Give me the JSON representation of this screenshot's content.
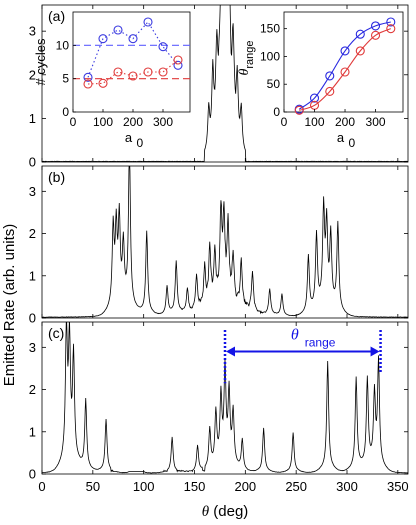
{
  "chart_data": {
    "type": "line",
    "ylabel": "Emitted Rate (arb. units)",
    "xlabel_symbol": "θ",
    "xlabel_unit": "(deg)",
    "xlim": [
      0,
      360
    ],
    "xticks": [
      0,
      50,
      100,
      150,
      200,
      250,
      300,
      350
    ],
    "ylim": [
      0,
      3.6
    ],
    "yticks": [
      0,
      1,
      2,
      3
    ],
    "panels": [
      {
        "label": "(a)",
        "peaks": [
          {
            "theta": 180,
            "height": 3.0
          },
          {
            "theta": 178,
            "height": 2.6
          },
          {
            "theta": 182,
            "height": 2.6
          },
          {
            "theta": 176,
            "height": 2.3
          },
          {
            "theta": 184,
            "height": 2.2
          },
          {
            "theta": 172,
            "height": 1.7
          },
          {
            "theta": 188,
            "height": 1.7
          },
          {
            "theta": 168,
            "height": 1.5
          },
          {
            "theta": 192,
            "height": 1.4
          },
          {
            "theta": 164,
            "height": 0.9
          },
          {
            "theta": 196,
            "height": 0.9
          }
        ]
      },
      {
        "label": "(b)",
        "peaks": [
          {
            "theta": 70,
            "height": 1.8
          },
          {
            "theta": 73,
            "height": 1.7
          },
          {
            "theta": 76,
            "height": 1.9
          },
          {
            "theta": 80,
            "height": 1.3
          },
          {
            "theta": 86,
            "height": 3.7
          },
          {
            "theta": 103,
            "height": 1.9
          },
          {
            "theta": 123,
            "height": 0.65
          },
          {
            "theta": 132,
            "height": 1.2
          },
          {
            "theta": 143,
            "height": 0.55
          },
          {
            "theta": 152,
            "height": 0.8
          },
          {
            "theta": 160,
            "height": 0.9
          },
          {
            "theta": 165,
            "height": 1.3
          },
          {
            "theta": 170,
            "height": 1.1
          },
          {
            "theta": 176,
            "height": 2.0
          },
          {
            "theta": 179,
            "height": 1.8
          },
          {
            "theta": 183,
            "height": 1.7
          },
          {
            "theta": 188,
            "height": 1.1
          },
          {
            "theta": 196,
            "height": 1.1
          },
          {
            "theta": 207,
            "height": 0.9
          },
          {
            "theta": 224,
            "height": 0.6
          },
          {
            "theta": 236,
            "height": 0.5
          },
          {
            "theta": 262,
            "height": 1.3
          },
          {
            "theta": 270,
            "height": 1.7
          },
          {
            "theta": 277,
            "height": 2.2
          },
          {
            "theta": 280,
            "height": 1.8
          },
          {
            "theta": 284,
            "height": 1.6
          },
          {
            "theta": 291,
            "height": 2.0
          }
        ]
      },
      {
        "label": "(c)",
        "peaks": [
          {
            "theta": 24,
            "height": 3.0
          },
          {
            "theta": 27,
            "height": 2.7
          },
          {
            "theta": 31,
            "height": 2.4
          },
          {
            "theta": 43,
            "height": 1.6
          },
          {
            "theta": 63,
            "height": 1.2
          },
          {
            "theta": 128,
            "height": 0.8
          },
          {
            "theta": 153,
            "height": 0.6
          },
          {
            "theta": 165,
            "height": 0.9
          },
          {
            "theta": 171,
            "height": 1.2
          },
          {
            "theta": 176,
            "height": 1.5
          },
          {
            "theta": 180,
            "height": 2.1
          },
          {
            "theta": 184,
            "height": 1.6
          },
          {
            "theta": 188,
            "height": 1.2
          },
          {
            "theta": 197,
            "height": 0.7
          },
          {
            "theta": 218,
            "height": 1.0
          },
          {
            "theta": 247,
            "height": 0.9
          },
          {
            "theta": 281,
            "height": 2.5
          },
          {
            "theta": 309,
            "height": 2.1
          },
          {
            "theta": 320,
            "height": 2.0
          },
          {
            "theta": 327,
            "height": 1.6
          },
          {
            "theta": 331,
            "height": 2.4
          }
        ],
        "bump": {
          "theta": 93,
          "height": 0.15
        },
        "annotation": {
          "symbol": "θ",
          "subscript": "range",
          "from": 180,
          "to": 333,
          "color": "#1414e6"
        }
      }
    ],
    "insets": [
      {
        "xlabel": "a",
        "xlabel_sub": "0",
        "ylabel": "# cycles",
        "xlim": [
          0,
          390
        ],
        "xticks": [
          0,
          100,
          200,
          300
        ],
        "ylim": [
          0,
          15
        ],
        "yticks": [
          0,
          5,
          10
        ],
        "series": [
          {
            "color": "#3a3ae0",
            "linestyle": "dotted",
            "marker": "circle",
            "x": [
              50,
              100,
              150,
              200,
              250,
              300,
              350
            ],
            "y": [
              5.2,
              11,
              12.3,
              11,
              13.5,
              9.8,
              7
            ]
          },
          {
            "color": "#e03a3a",
            "linestyle": "dotted",
            "marker": "circle",
            "x": [
              50,
              100,
              150,
              200,
              250,
              300,
              350
            ],
            "y": [
              4.2,
              4.3,
              6,
              5.4,
              6,
              6,
              7.8
            ]
          }
        ],
        "hlines": [
          {
            "y": 10,
            "color": "#6060ff"
          },
          {
            "y": 5,
            "color": "#e03a3a"
          }
        ]
      },
      {
        "xlabel": "a",
        "xlabel_sub": "0",
        "ylabel": "θ",
        "ylabel_sub": "range",
        "xlim": [
          0,
          390
        ],
        "xticks": [
          0,
          100,
          200,
          300
        ],
        "ylim": [
          0,
          180
        ],
        "yticks": [
          0,
          50,
          100,
          150
        ],
        "series": [
          {
            "color": "#2a2ae0",
            "linestyle": "solid",
            "marker": "circle",
            "x": [
              50,
              100,
              150,
              200,
              250,
              300,
              350
            ],
            "y": [
              5,
              25,
              65,
              110,
              140,
              155,
              162
            ]
          },
          {
            "color": "#e03a3a",
            "linestyle": "solid",
            "marker": "circle",
            "x": [
              50,
              100,
              150,
              200,
              250,
              300,
              350
            ],
            "y": [
              3,
              12,
              37,
              72,
              110,
              138,
              150
            ]
          }
        ]
      }
    ]
  }
}
